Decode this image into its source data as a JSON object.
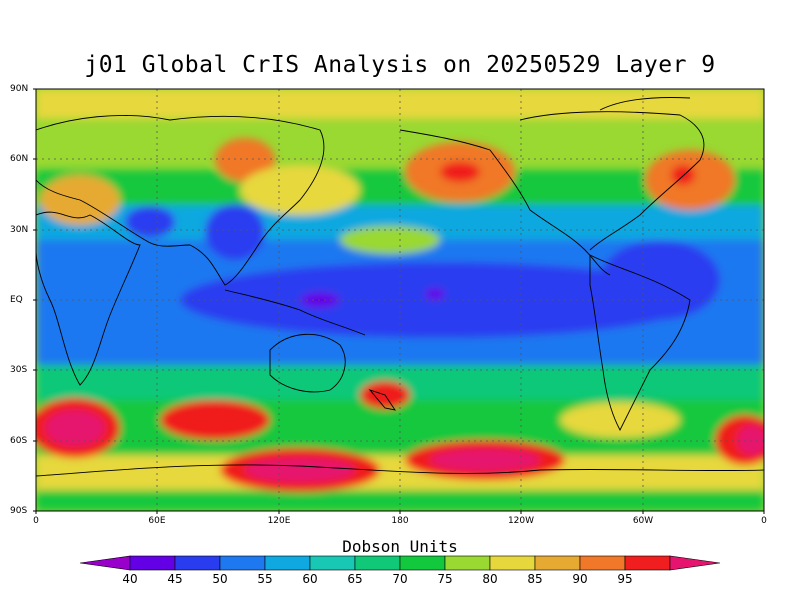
{
  "title": "j01 Global CrIS Analysis on 20250529 Layer 9",
  "lat_labels": [
    "90N",
    "60N",
    "30N",
    "EQ",
    "30S",
    "60S",
    "90S"
  ],
  "lon_labels": [
    "0",
    "60E",
    "120E",
    "180",
    "120W",
    "60W",
    "0"
  ],
  "colorbar": {
    "title": "Dobson Units",
    "ticks": [
      "40",
      "45",
      "50",
      "55",
      "60",
      "65",
      "70",
      "75",
      "80",
      "85",
      "90",
      "95"
    ],
    "colors": [
      "#9900cc",
      "#6400e6",
      "#2a3cf0",
      "#1e78f0",
      "#10a8e0",
      "#18c8b4",
      "#10c878",
      "#12c83c",
      "#9ad832",
      "#e6d83c",
      "#e6aa32",
      "#f07828",
      "#f01e1e",
      "#e6146e"
    ]
  },
  "legend": {
    "name": "legend",
    "items": [
      {
        "label": "Dobson Units"
      }
    ]
  }
}
